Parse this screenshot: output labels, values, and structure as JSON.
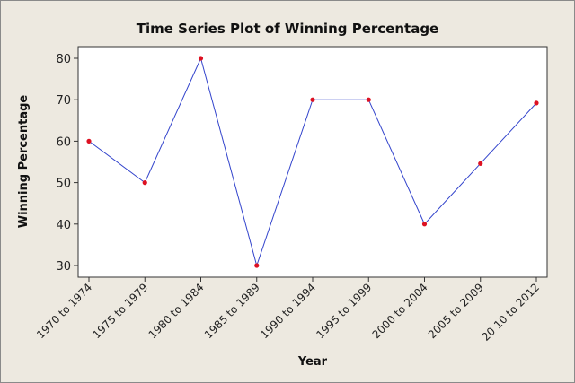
{
  "chart_data": {
    "type": "line",
    "title": "Time Series Plot of Winning Percentage",
    "xlabel": "Year",
    "ylabel": "Winning Percentage",
    "categories": [
      "1970 to 1974",
      "1975 to 1979",
      "1980 to 1984",
      "1985 to 1989",
      "1990 to 1994",
      "1995 to 1999",
      "2000 to 2004",
      "2005 to 2009",
      "20 10 to 2012"
    ],
    "series": [
      {
        "name": "Winning Percentage",
        "values": [
          60,
          50,
          80,
          30,
          70,
          70,
          40,
          54.6,
          69.2
        ]
      }
    ],
    "yticks": [
      30,
      40,
      50,
      60,
      70,
      80
    ],
    "ylim": [
      27.8,
      82.9
    ],
    "grid": false,
    "colors": {
      "line": "#3344cc",
      "marker": "#dd1122",
      "background": "#ede9e0"
    }
  }
}
